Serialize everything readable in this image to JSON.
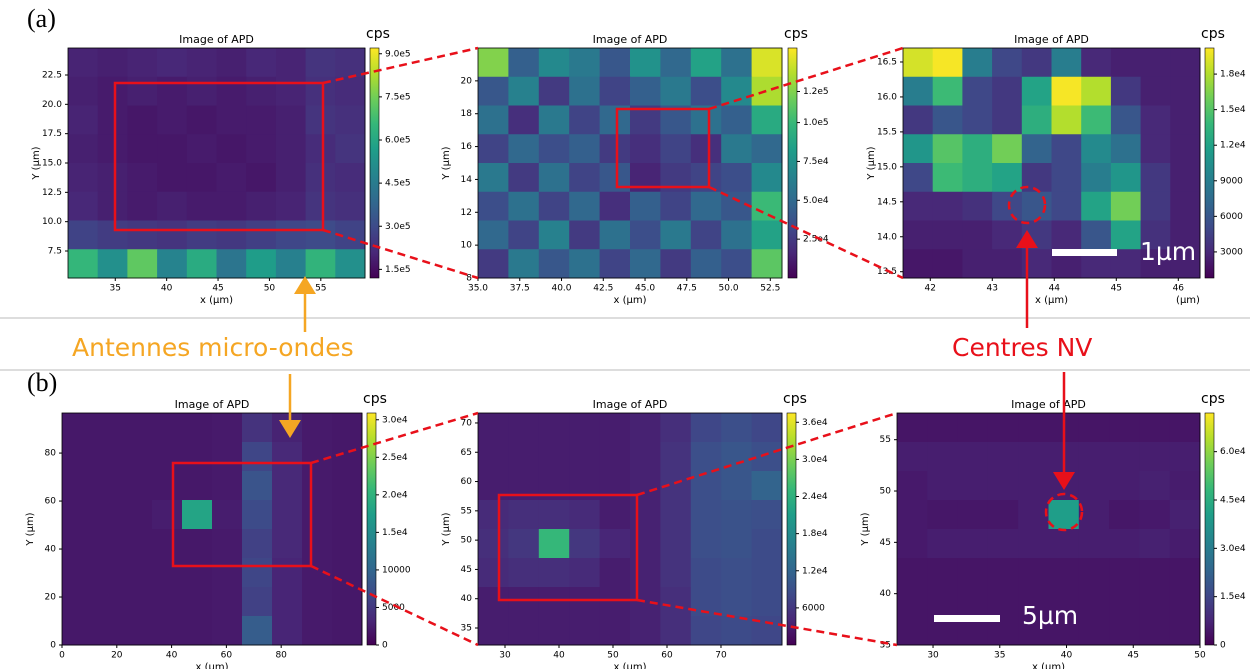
{
  "labels": {
    "panel_a": "(a)",
    "panel_b": "(b)",
    "antennas": "Antennes micro-ondes",
    "nv_centres": "Centres NV",
    "scale_a": "1µm",
    "scale_b": "5µm"
  },
  "chart_data": [
    {
      "type": "heatmap",
      "title": "Image of APD",
      "xlabel": "x (µm)",
      "ylabel": "Y (µm)",
      "colorbar_label": "cps",
      "colormap": "viridis",
      "xlim": [
        30.4,
        59.3
      ],
      "ylim": [
        5.2,
        24.8
      ],
      "zlim": [
        120000,
        920000
      ],
      "xticks": [
        35,
        40,
        45,
        50,
        55
      ],
      "yticks": [
        7.5,
        {
          "value": 10,
          "label": "10.0"
        },
        12.5,
        {
          "value": 15,
          "label": "15.0"
        },
        17.5,
        {
          "value": 20,
          "label": "20.0"
        },
        22.5
      ],
      "zticks": [
        {
          "value": 150000,
          "label": "1.5e5"
        },
        {
          "value": 300000,
          "label": "3.0e5"
        },
        {
          "value": 450000,
          "label": "4.5e5"
        },
        {
          "value": 600000,
          "label": "6.0e5"
        },
        {
          "value": 750000,
          "label": "7.5e5"
        },
        {
          "value": 900000,
          "label": "9.0e5"
        }
      ],
      "z": [
        [
          200000,
          190000,
          200000,
          210000,
          200000,
          190000,
          210000,
          200000,
          240000,
          230000
        ],
        [
          190000,
          180000,
          190000,
          180000,
          190000,
          180000,
          190000,
          200000,
          230000,
          220000
        ],
        [
          200000,
          180000,
          170000,
          180000,
          170000,
          180000,
          180000,
          190000,
          240000,
          230000
        ],
        [
          190000,
          180000,
          170000,
          170000,
          180000,
          170000,
          180000,
          190000,
          220000,
          240000
        ],
        [
          200000,
          190000,
          180000,
          170000,
          170000,
          180000,
          170000,
          190000,
          230000,
          220000
        ],
        [
          210000,
          190000,
          180000,
          190000,
          180000,
          180000,
          190000,
          200000,
          240000,
          230000
        ],
        [
          280000,
          260000,
          250000,
          240000,
          260000,
          250000,
          270000,
          290000,
          300000,
          280000
        ],
        [
          650000,
          520000,
          720000,
          480000,
          610000,
          430000,
          560000,
          470000,
          640000,
          520000
        ]
      ]
    },
    {
      "type": "heatmap",
      "title": "Image of APD",
      "xlabel": "x (µm)",
      "ylabel": "Y (µm)",
      "colorbar_label": "cps",
      "colormap": "viridis",
      "xlim": [
        35,
        53.2
      ],
      "ylim": [
        8,
        22
      ],
      "zlim": [
        0,
        148000
      ],
      "xticks": [
        {
          "value": 35,
          "label": "35.0"
        },
        37.5,
        {
          "value": 40,
          "label": "40.0"
        },
        42.5,
        {
          "value": 45,
          "label": "45.0"
        },
        47.5,
        {
          "value": 50,
          "label": "50.0"
        },
        52.5
      ],
      "yticks": [
        8,
        10,
        12,
        14,
        16,
        18,
        20
      ],
      "zticks": [
        {
          "value": 25000,
          "label": "2.5e4"
        },
        {
          "value": 50000,
          "label": "5.0e4"
        },
        {
          "value": 75000,
          "label": "7.5e4"
        },
        {
          "value": 100000,
          "label": "1.0e5"
        },
        {
          "value": 120000,
          "label": "1.2e5"
        }
      ],
      "z": [
        [
          120000,
          45000,
          70000,
          60000,
          40000,
          75000,
          50000,
          85000,
          55000,
          140000
        ],
        [
          40000,
          65000,
          25000,
          55000,
          30000,
          45000,
          60000,
          35000,
          70000,
          130000
        ],
        [
          55000,
          20000,
          60000,
          30000,
          50000,
          25000,
          40000,
          55000,
          45000,
          90000
        ],
        [
          30000,
          50000,
          35000,
          45000,
          25000,
          20000,
          30000,
          20000,
          60000,
          50000
        ],
        [
          60000,
          25000,
          55000,
          30000,
          40000,
          15000,
          25000,
          30000,
          35000,
          70000
        ],
        [
          35000,
          55000,
          30000,
          50000,
          20000,
          45000,
          30000,
          50000,
          40000,
          100000
        ],
        [
          50000,
          30000,
          65000,
          25000,
          55000,
          35000,
          60000,
          30000,
          55000,
          85000
        ],
        [
          25000,
          60000,
          40000,
          55000,
          30000,
          50000,
          25000,
          45000,
          35000,
          110000
        ]
      ]
    },
    {
      "type": "heatmap",
      "title": "Image of APD",
      "xlabel": "x (µm)",
      "ylabel": "Y (µm)",
      "xunit_note": "(µm)",
      "colorbar_label": "cps",
      "colormap": "viridis",
      "xlim": [
        41.56,
        46.35
      ],
      "ylim": [
        13.41,
        16.7
      ],
      "zlim": [
        800,
        20200
      ],
      "xticks": [
        42,
        43,
        44,
        45,
        46
      ],
      "yticks": [
        13.5,
        {
          "value": 14,
          "label": "14.0"
        },
        14.5,
        {
          "value": 15,
          "label": "15.0"
        },
        15.5,
        {
          "value": 16,
          "label": "16.0"
        },
        16.5
      ],
      "zticks": [
        3000,
        6000,
        9000,
        {
          "value": 12000,
          "label": "1.2e4"
        },
        {
          "value": 15000,
          "label": "1.5e4"
        },
        {
          "value": 18000,
          "label": "1.8e4"
        }
      ],
      "z": [
        [
          19000,
          20000,
          9000,
          5000,
          4000,
          9000,
          3000,
          2500,
          2500,
          2500
        ],
        [
          9000,
          14000,
          5000,
          4000,
          12000,
          20000,
          18000,
          4000,
          2500,
          2500
        ],
        [
          4000,
          6000,
          5000,
          4000,
          13000,
          18000,
          14000,
          6000,
          3000,
          2500
        ],
        [
          11000,
          15000,
          13000,
          16000,
          7000,
          5000,
          10000,
          8000,
          3000,
          2500
        ],
        [
          5000,
          14000,
          13000,
          12000,
          4000,
          5000,
          9000,
          11000,
          4000,
          2500
        ],
        [
          3000,
          3000,
          3500,
          5000,
          6000,
          5000,
          12000,
          16000,
          4000,
          2500
        ],
        [
          2500,
          2500,
          2500,
          3000,
          4000,
          3000,
          6000,
          12000,
          3500,
          2500
        ],
        [
          2000,
          2000,
          2500,
          2500,
          3000,
          2500,
          3000,
          3000,
          2500,
          2500
        ]
      ]
    },
    {
      "type": "heatmap",
      "title": "Image of APD",
      "xlabel": "x (µm)",
      "ylabel": "Y (µm)",
      "colorbar_label": "cps",
      "colormap": "viridis",
      "xlim": [
        0,
        109.5
      ],
      "ylim": [
        0,
        96.7
      ],
      "zlim": [
        0,
        30900
      ],
      "xticks": [
        0,
        20,
        40,
        60,
        80
      ],
      "yticks": [
        0,
        20,
        40,
        60,
        80
      ],
      "zticks": [
        0,
        5000,
        10000,
        {
          "value": 15000,
          "label": "1.5e4"
        },
        {
          "value": 20000,
          "label": "2.0e4"
        },
        {
          "value": 25000,
          "label": "2.5e4"
        },
        {
          "value": 30000,
          "label": "3.0e4"
        }
      ],
      "z": [
        [
          2000,
          2000,
          2000,
          2000,
          2000,
          2200,
          4500,
          3000,
          2200,
          2000
        ],
        [
          2000,
          2000,
          2000,
          2000,
          2000,
          2200,
          6500,
          3500,
          2200,
          2000
        ],
        [
          2000,
          2000,
          2000,
          2000,
          2000,
          2200,
          8000,
          3500,
          2200,
          2000
        ],
        [
          2000,
          2000,
          2000,
          2500,
          18000,
          2500,
          7000,
          3500,
          2200,
          2000
        ],
        [
          2000,
          2000,
          2000,
          2000,
          2000,
          2200,
          6000,
          3500,
          2200,
          2000
        ],
        [
          2000,
          2000,
          2000,
          2000,
          2000,
          2200,
          6500,
          3200,
          2200,
          2000
        ],
        [
          2000,
          2000,
          2000,
          2000,
          2000,
          2200,
          6000,
          3200,
          2200,
          2000
        ],
        [
          2000,
          2000,
          2000,
          2000,
          2000,
          2200,
          9000,
          3200,
          2200,
          2000
        ]
      ]
    },
    {
      "type": "heatmap",
      "title": "Image of APD",
      "xlabel": "x (µm)",
      "ylabel": "Y (µm)",
      "colorbar_label": "cps",
      "colormap": "viridis",
      "xlim": [
        25,
        81.3
      ],
      "ylim": [
        32.1,
        71.7
      ],
      "zlim": [
        0,
        37500
      ],
      "xticks": [
        30,
        40,
        50,
        60,
        70
      ],
      "yticks": [
        35,
        40,
        45,
        50,
        55,
        60,
        65,
        70
      ],
      "zticks": [
        6000,
        {
          "value": 12000,
          "label": "1.2e4"
        },
        {
          "value": 18000,
          "label": "1.8e4"
        },
        {
          "value": 24000,
          "label": "2.4e4"
        },
        {
          "value": 30000,
          "label": "3.0e4"
        },
        {
          "value": 36000,
          "label": "3.6e4"
        }
      ],
      "z": [
        [
          3000,
          3000,
          3000,
          3000,
          3000,
          3500,
          5000,
          8000,
          9000,
          8000
        ],
        [
          3000,
          3000,
          3000,
          3000,
          3000,
          3500,
          5500,
          9000,
          10000,
          9000
        ],
        [
          3000,
          3000,
          3000,
          3000,
          3000,
          3500,
          5500,
          9000,
          10000,
          12000
        ],
        [
          4500,
          5000,
          5000,
          4500,
          3000,
          3500,
          5500,
          9000,
          9500,
          9000
        ],
        [
          5000,
          6000,
          25000,
          6000,
          4000,
          3500,
          5500,
          9000,
          9500,
          8500
        ],
        [
          4500,
          5000,
          5000,
          4500,
          3000,
          3500,
          5500,
          8500,
          9000,
          8500
        ],
        [
          3000,
          3000,
          3000,
          3000,
          3000,
          3500,
          5000,
          8500,
          9000,
          8500
        ],
        [
          3000,
          3000,
          3000,
          3000,
          3000,
          3500,
          5000,
          8000,
          8500,
          8000
        ]
      ]
    },
    {
      "type": "heatmap",
      "title": "Image of APD",
      "xlabel": "x (µm)",
      "ylabel": "Y (µm)",
      "colorbar_label": "cps",
      "colormap": "viridis",
      "xlim": [
        27.3,
        50
      ],
      "ylim": [
        35,
        57.6
      ],
      "zlim": [
        0,
        72000
      ],
      "xticks": [
        30,
        35,
        40,
        45,
        50
      ],
      "yticks": [
        35,
        40,
        45,
        50,
        55
      ],
      "zticks": [
        0,
        {
          "value": 15000,
          "label": "1.5e4"
        },
        {
          "value": 30000,
          "label": "3.0e4"
        },
        {
          "value": 45000,
          "label": "4.5e4"
        },
        {
          "value": 60000,
          "label": "6.0e4"
        }
      ],
      "z": [
        [
          4000,
          4000,
          4000,
          4000,
          4000,
          4000,
          4000,
          4000,
          4000,
          4000
        ],
        [
          6000,
          6000,
          6000,
          6000,
          6000,
          6000,
          6000,
          6000,
          6000,
          6000
        ],
        [
          5000,
          6000,
          6000,
          6000,
          6000,
          6000,
          6000,
          6000,
          6500,
          5500
        ],
        [
          5000,
          4500,
          4500,
          4500,
          6000,
          40000,
          6000,
          4500,
          5000,
          6500
        ],
        [
          5000,
          6000,
          6000,
          6000,
          6000,
          6000,
          6000,
          6000,
          6500,
          5500
        ],
        [
          4000,
          4000,
          4000,
          4000,
          4000,
          4000,
          4000,
          4000,
          4000,
          4000
        ],
        [
          4000,
          4000,
          4000,
          4000,
          4000,
          4000,
          4000,
          4000,
          4000,
          4000
        ],
        [
          4000,
          4000,
          4000,
          4000,
          4000,
          4000,
          4000,
          4000,
          4000,
          4000
        ]
      ]
    }
  ]
}
